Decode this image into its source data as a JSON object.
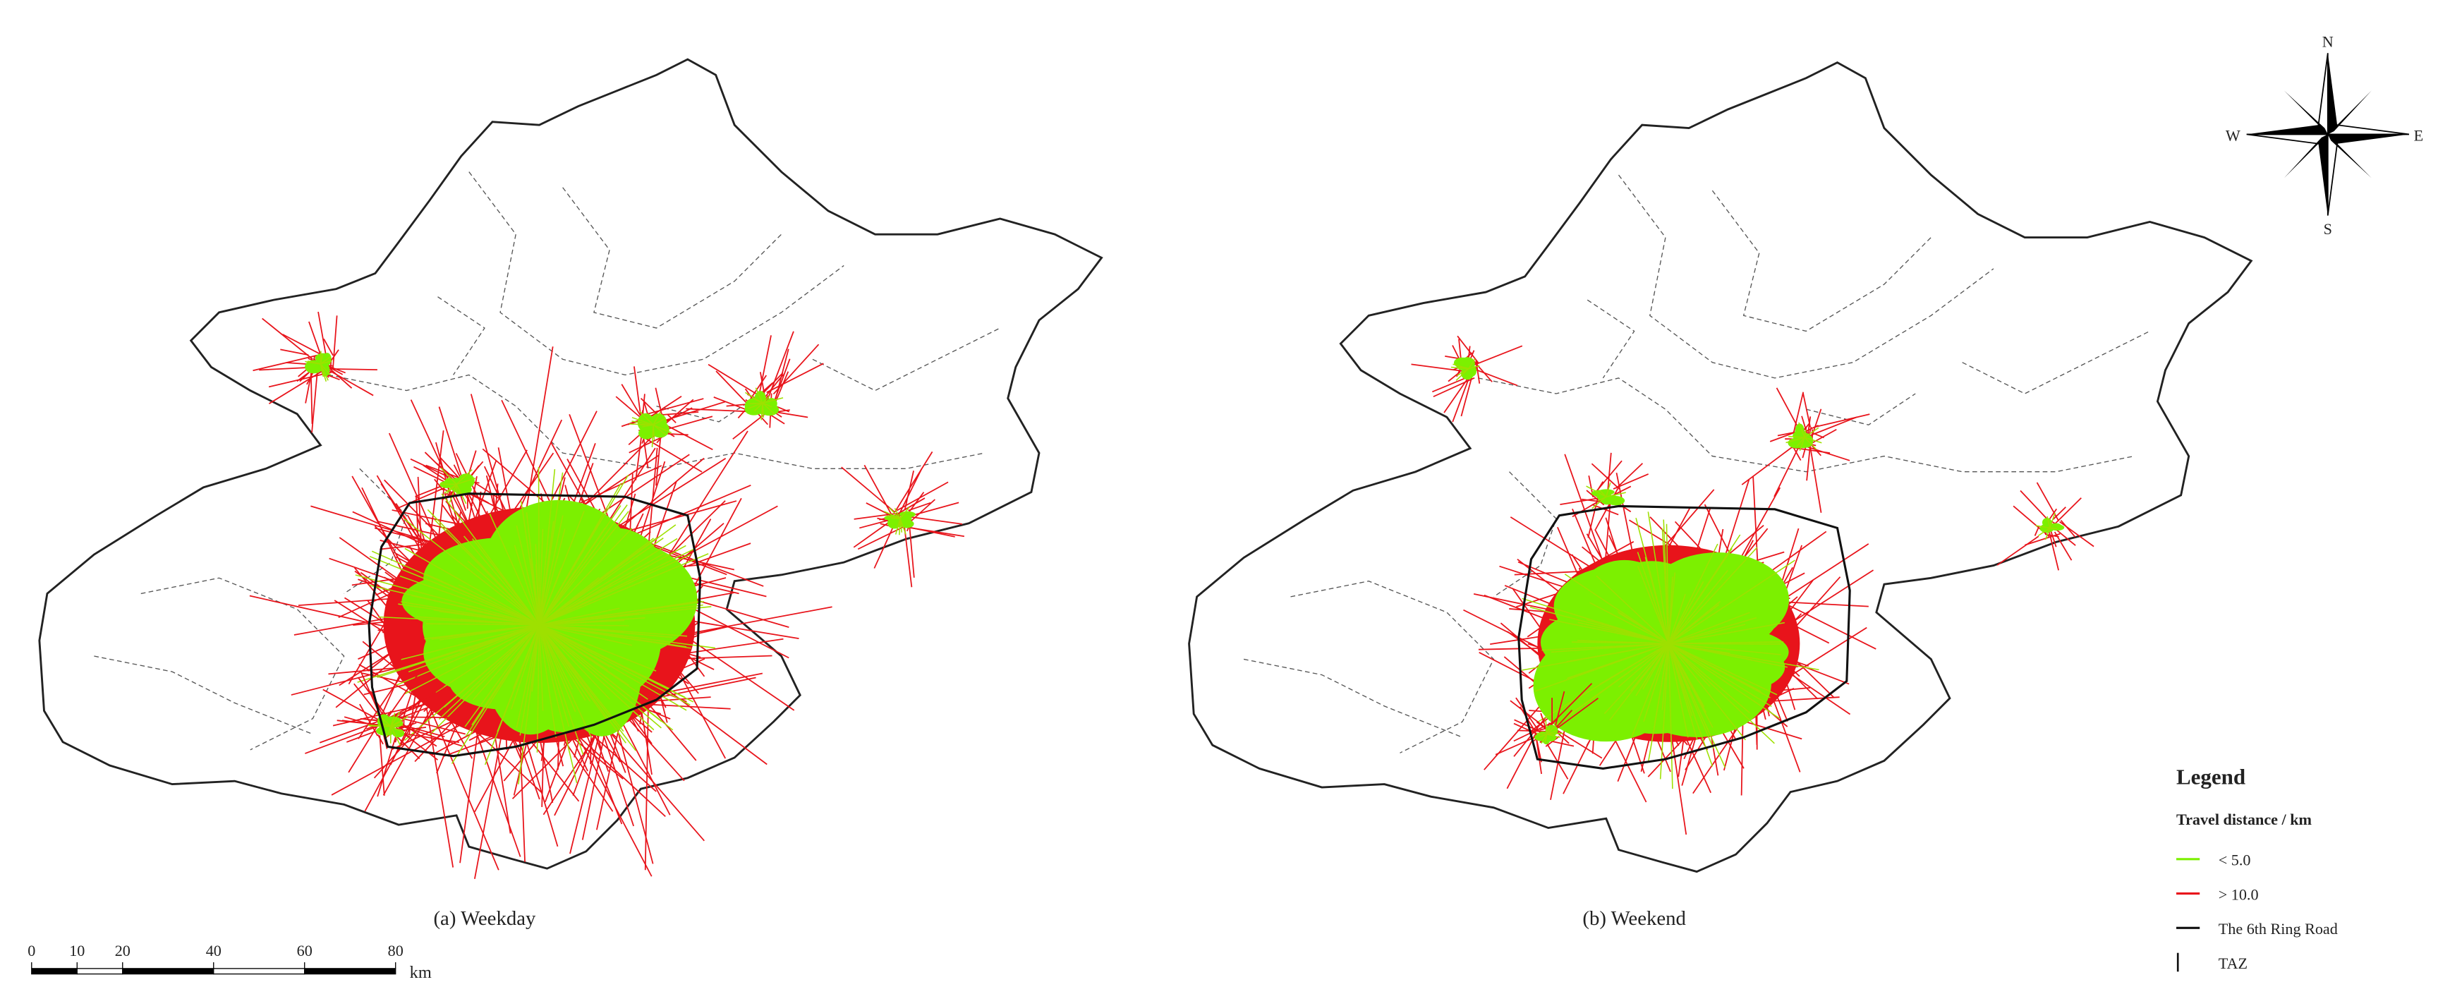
{
  "panels": [
    {
      "caption": "(a) Weekday"
    },
    {
      "caption": "(b) Weekend"
    }
  ],
  "legend": {
    "title": "Legend",
    "subtitle": "Travel distance / km",
    "items": [
      "< 5.0",
      "> 10.0",
      "The 6th Ring Road",
      "TAZ"
    ]
  },
  "scale_bar": {
    "ticks": [
      0,
      10,
      20,
      40,
      60,
      80
    ],
    "unit": "km"
  },
  "compass": {
    "north": "N",
    "south": "S",
    "east": "E",
    "west": "W"
  }
}
